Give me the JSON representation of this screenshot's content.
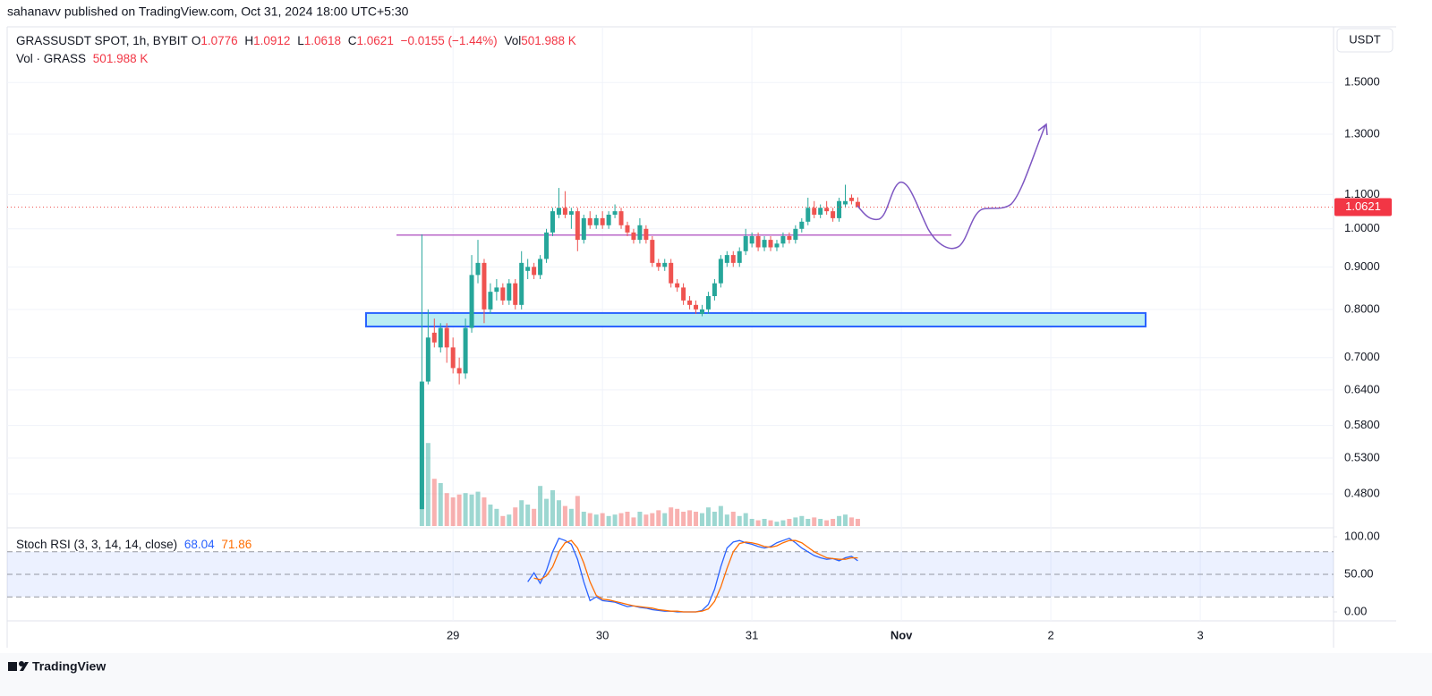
{
  "header": {
    "publisher": "sahanavv published on TradingView.com, Oct 31, 2024 18:00 UTC+5:30",
    "symbol": "GRASSUSDT SPOT, 1h, BYBIT",
    "ohlc_keys": [
      "O",
      "H",
      "L",
      "C"
    ],
    "change": "−0.0155 (−1.44%)",
    "vol_key": "Vol",
    "volume_label": "501.988 K",
    "vol_title": "Vol · GRASS",
    "stoch_title": "Stoch RSI (3, 3, 14, 14, close)",
    "currency": "USDT",
    "brand": "TradingView"
  },
  "chart_data": {
    "type": "candlestick",
    "log_scale": true,
    "grid": true,
    "up_color": "#26a69a",
    "down_color": "#ef5350",
    "xlim": [
      -71.6,
      141.4
    ],
    "xticks": [
      {
        "value": 0,
        "label": "29"
      },
      {
        "value": 24,
        "label": "30"
      },
      {
        "value": 48,
        "label": "31"
      },
      {
        "value": 72,
        "label": "Nov"
      },
      {
        "value": 96,
        "label": "2"
      },
      {
        "value": 120,
        "label": "3"
      }
    ],
    "ylim": [
      0.439,
      1.75
    ],
    "yticks": [
      {
        "value": 1.5,
        "label": "1.5000"
      },
      {
        "value": 1.3,
        "label": "1.3000"
      },
      {
        "value": 1.1,
        "label": "1.1000"
      },
      {
        "value": 1.0,
        "label": "1.0000"
      },
      {
        "value": 0.9,
        "label": "0.9000"
      },
      {
        "value": 0.8,
        "label": "0.8000"
      },
      {
        "value": 0.7,
        "label": "0.7000"
      },
      {
        "value": 0.64,
        "label": "0.6400"
      },
      {
        "value": 0.58,
        "label": "0.5800"
      },
      {
        "value": 0.53,
        "label": "0.5300"
      },
      {
        "value": 0.48,
        "label": "0.4800"
      }
    ],
    "x": [
      -5,
      -4,
      -3,
      -2,
      -1,
      0,
      1,
      2,
      3,
      4,
      5,
      6,
      7,
      8,
      9,
      10,
      11,
      12,
      13,
      14,
      15,
      16,
      17,
      18,
      19,
      20,
      21,
      22,
      23,
      24,
      25,
      26,
      27,
      28,
      29,
      30,
      31,
      32,
      33,
      34,
      35,
      36,
      37,
      38,
      39,
      40,
      41,
      42,
      43,
      44,
      45,
      46,
      47,
      48,
      49,
      50,
      51,
      52,
      53,
      54,
      55,
      56,
      57,
      58,
      59,
      60,
      61,
      62,
      63,
      64,
      65
    ],
    "open": [
      0.46,
      0.655,
      0.75,
      0.72,
      0.76,
      0.72,
      0.68,
      0.67,
      0.76,
      0.88,
      0.91,
      0.8,
      0.84,
      0.85,
      0.82,
      0.86,
      0.81,
      0.89,
      0.9,
      0.88,
      0.92,
      0.99,
      1.04,
      1.06,
      1.04,
      1.05,
      0.97,
      1.03,
      1.01,
      1.03,
      1.01,
      1.04,
      1.05,
      1.01,
      0.99,
      0.97,
      1.0,
      0.97,
      0.91,
      0.9,
      0.91,
      0.86,
      0.85,
      0.82,
      0.81,
      0.79,
      0.8,
      0.83,
      0.86,
      0.91,
      0.93,
      0.91,
      0.94,
      0.96,
      0.98,
      0.95,
      0.97,
      0.95,
      0.96,
      0.98,
      0.97,
      1.0,
      1.02,
      1.06,
      1.04,
      1.06,
      1.05,
      1.03,
      1.07,
      1.09,
      1.0776
    ],
    "high": [
      0.985,
      0.8,
      0.78,
      0.77,
      0.77,
      0.74,
      0.7,
      0.78,
      0.93,
      0.97,
      0.92,
      0.86,
      0.87,
      0.86,
      0.87,
      0.87,
      0.94,
      0.92,
      0.91,
      0.93,
      1.0,
      1.06,
      1.12,
      1.11,
      1.06,
      1.06,
      1.04,
      1.05,
      1.04,
      1.05,
      1.05,
      1.07,
      1.06,
      1.02,
      1.0,
      1.03,
      1.01,
      0.98,
      0.92,
      0.92,
      0.92,
      0.87,
      0.86,
      0.83,
      0.82,
      0.81,
      0.84,
      0.87,
      0.93,
      0.94,
      0.94,
      0.95,
      1.0,
      0.99,
      0.99,
      0.98,
      0.98,
      0.97,
      0.99,
      0.99,
      1.01,
      1.03,
      1.09,
      1.08,
      1.07,
      1.08,
      1.06,
      1.09,
      1.13,
      1.1,
      1.0912
    ],
    "low": [
      0.46,
      0.65,
      0.72,
      0.71,
      0.69,
      0.67,
      0.65,
      0.66,
      0.75,
      0.86,
      0.77,
      0.79,
      0.82,
      0.81,
      0.81,
      0.8,
      0.8,
      0.87,
      0.87,
      0.87,
      0.91,
      0.98,
      1.03,
      1.03,
      1.0,
      0.94,
      0.96,
      1.0,
      1.0,
      1.0,
      1.0,
      1.03,
      1.0,
      0.98,
      0.96,
      0.96,
      0.96,
      0.9,
      0.89,
      0.89,
      0.85,
      0.84,
      0.81,
      0.8,
      0.79,
      0.785,
      0.79,
      0.82,
      0.85,
      0.9,
      0.9,
      0.9,
      0.93,
      0.95,
      0.94,
      0.94,
      0.94,
      0.94,
      0.95,
      0.96,
      0.96,
      0.99,
      1.01,
      1.03,
      1.03,
      1.04,
      1.02,
      1.02,
      1.06,
      1.07,
      1.0618
    ],
    "close": [
      0.655,
      0.74,
      0.73,
      0.76,
      0.72,
      0.68,
      0.67,
      0.76,
      0.88,
      0.91,
      0.8,
      0.84,
      0.85,
      0.82,
      0.86,
      0.81,
      0.91,
      0.9,
      0.88,
      0.92,
      0.99,
      1.05,
      1.06,
      1.04,
      1.05,
      0.97,
      1.03,
      1.01,
      1.03,
      1.01,
      1.04,
      1.05,
      1.01,
      0.99,
      0.97,
      1.01,
      0.97,
      0.91,
      0.9,
      0.91,
      0.86,
      0.85,
      0.82,
      0.81,
      0.8,
      0.8,
      0.83,
      0.86,
      0.92,
      0.93,
      0.91,
      0.94,
      0.98,
      0.98,
      0.95,
      0.97,
      0.95,
      0.96,
      0.98,
      0.97,
      1.0,
      1.02,
      1.06,
      1.04,
      1.06,
      1.05,
      1.03,
      1.08,
      1.08,
      1.08,
      1.0621
    ],
    "volume": [
      9750,
      5800,
      3300,
      3000,
      2300,
      2000,
      2200,
      2300,
      2200,
      2400,
      2000,
      1500,
      1200,
      700,
      800,
      1300,
      1800,
      1500,
      1200,
      2800,
      1900,
      2500,
      1800,
      1400,
      1200,
      2100,
      1000,
      900,
      800,
      900,
      700,
      800,
      900,
      1000,
      600,
      1000,
      800,
      900,
      1100,
      900,
      1300,
      1200,
      1000,
      1100,
      1000,
      900,
      1300,
      1000,
      1400,
      800,
      1000,
      700,
      900,
      500,
      400,
      500,
      400,
      300,
      400,
      500,
      600,
      700,
      500,
      600,
      500,
      400,
      500,
      700,
      800,
      600,
      501.988
    ],
    "zone": {
      "low": 0.763,
      "high": 0.792
    },
    "level": 0.983,
    "stoch": {
      "ylim": [
        -11.9,
        111.9
      ],
      "yticks": [
        {
          "value": 100,
          "label": "100.00"
        },
        {
          "value": 50,
          "label": "50.00"
        },
        {
          "value": 0,
          "label": "0.00"
        }
      ],
      "bands": [
        20,
        80
      ],
      "series": [
        {
          "name": "K",
          "color": "#2962ff",
          "values": [
            null,
            null,
            null,
            null,
            null,
            null,
            null,
            null,
            null,
            null,
            null,
            null,
            null,
            null,
            null,
            null,
            null,
            40,
            52,
            38,
            55,
            80,
            98,
            95,
            90,
            70,
            40,
            15,
            20,
            15,
            14,
            13,
            10,
            7,
            8,
            6,
            5,
            3,
            2,
            1,
            1,
            0,
            0,
            0,
            0,
            2,
            10,
            30,
            60,
            85,
            93,
            95,
            92,
            90,
            87,
            85,
            87,
            92,
            95,
            98,
            92,
            85,
            80,
            75,
            72,
            70,
            71,
            68,
            72,
            74,
            68.04
          ]
        },
        {
          "name": "D",
          "color": "#ff6d00",
          "values": [
            null,
            null,
            null,
            null,
            null,
            null,
            null,
            null,
            null,
            null,
            null,
            null,
            null,
            null,
            null,
            null,
            null,
            null,
            45,
            43,
            48,
            60,
            80,
            92,
            95,
            85,
            65,
            40,
            22,
            17,
            16,
            14,
            12,
            10,
            8,
            7,
            6,
            5,
            3,
            2,
            1,
            1,
            0,
            0,
            0,
            1,
            4,
            14,
            33,
            58,
            80,
            91,
            93,
            92,
            90,
            87,
            86,
            88,
            92,
            95,
            95,
            92,
            86,
            80,
            76,
            72,
            71,
            70,
            70,
            72,
            71.86
          ]
        }
      ]
    }
  }
}
